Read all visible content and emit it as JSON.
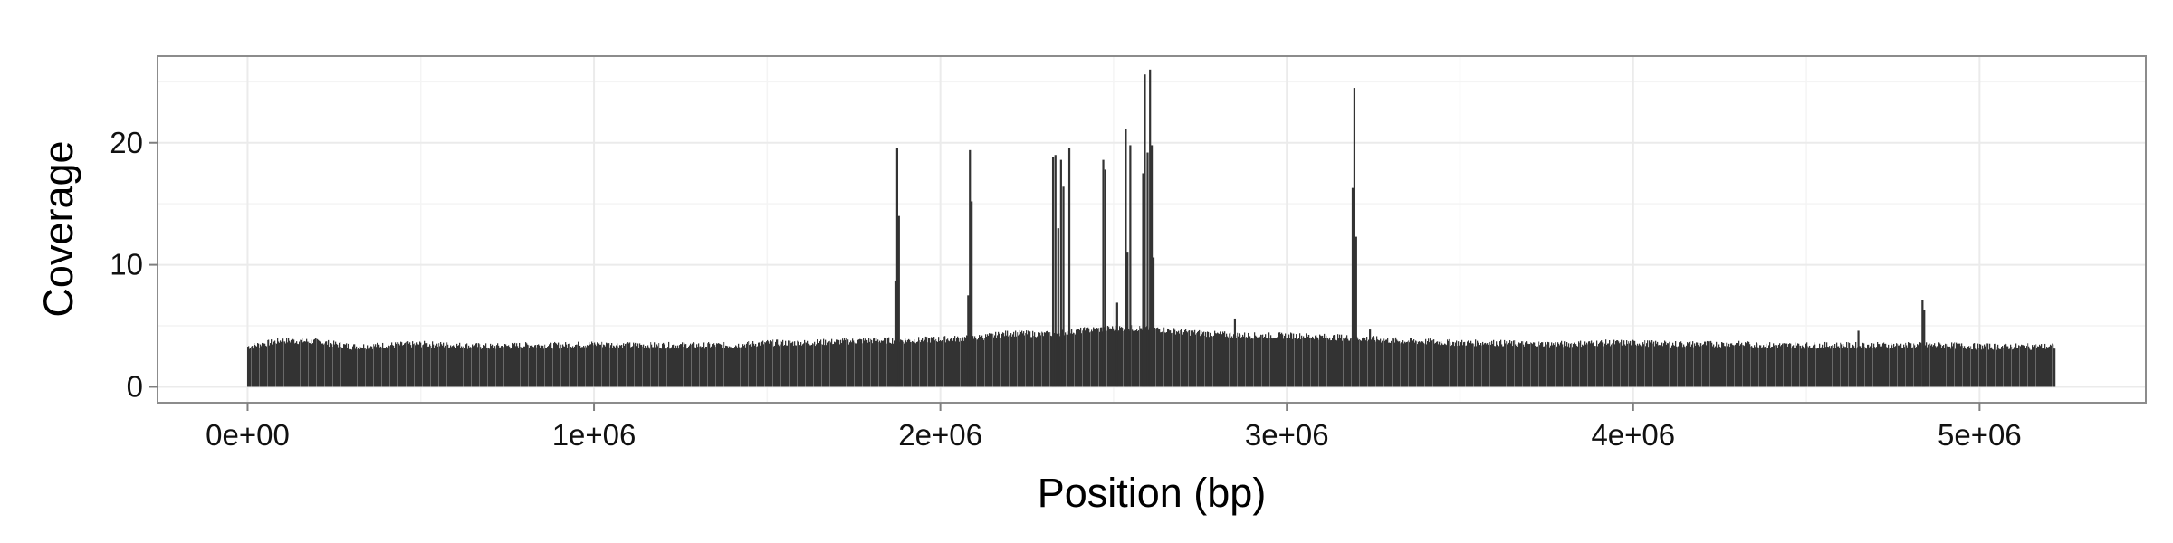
{
  "chart_data": {
    "type": "bar",
    "title": "",
    "xlabel": "Position (bp)",
    "ylabel": "Coverage",
    "xlim": [
      -260000,
      5480000
    ],
    "ylim": [
      -1.3,
      27.1
    ],
    "x_ticks": [
      0,
      1000000,
      2000000,
      3000000,
      4000000,
      5000000
    ],
    "x_tick_labels": [
      "0e+00",
      "1e+06",
      "2e+06",
      "3e+06",
      "4e+06",
      "5e+06"
    ],
    "y_ticks": [
      0,
      10,
      20
    ],
    "y_tick_labels": [
      "0",
      "10",
      "20"
    ],
    "x_range": [
      0,
      5220000
    ],
    "grid": true,
    "colors": {
      "bar": "#333333",
      "grid": "#ebebeb",
      "panel_border": "#8c8c8c",
      "background": "#ffffff"
    },
    "baseline_profile": [
      [
        0,
        3.3
      ],
      [
        100000,
        3.8
      ],
      [
        200000,
        3.7
      ],
      [
        300000,
        3.3
      ],
      [
        400000,
        3.4
      ],
      [
        500000,
        3.5
      ],
      [
        600000,
        3.4
      ],
      [
        700000,
        3.3
      ],
      [
        800000,
        3.4
      ],
      [
        900000,
        3.4
      ],
      [
        1000000,
        3.5
      ],
      [
        1100000,
        3.4
      ],
      [
        1200000,
        3.4
      ],
      [
        1300000,
        3.4
      ],
      [
        1400000,
        3.4
      ],
      [
        1500000,
        3.6
      ],
      [
        1600000,
        3.6
      ],
      [
        1700000,
        3.7
      ],
      [
        1800000,
        3.8
      ],
      [
        1900000,
        3.8
      ],
      [
        2000000,
        3.9
      ],
      [
        2100000,
        4.0
      ],
      [
        2200000,
        4.4
      ],
      [
        2300000,
        4.3
      ],
      [
        2400000,
        4.6
      ],
      [
        2500000,
        4.8
      ],
      [
        2600000,
        4.8
      ],
      [
        2700000,
        4.5
      ],
      [
        2800000,
        4.3
      ],
      [
        2900000,
        4.2
      ],
      [
        3000000,
        4.2
      ],
      [
        3100000,
        4.1
      ],
      [
        3200000,
        4.0
      ],
      [
        3300000,
        3.8
      ],
      [
        3400000,
        3.7
      ],
      [
        3500000,
        3.6
      ],
      [
        3600000,
        3.6
      ],
      [
        3700000,
        3.5
      ],
      [
        3800000,
        3.5
      ],
      [
        3900000,
        3.6
      ],
      [
        4000000,
        3.6
      ],
      [
        4100000,
        3.5
      ],
      [
        4200000,
        3.5
      ],
      [
        4300000,
        3.5
      ],
      [
        4400000,
        3.4
      ],
      [
        4500000,
        3.4
      ],
      [
        4600000,
        3.4
      ],
      [
        4700000,
        3.4
      ],
      [
        4800000,
        3.4
      ],
      [
        4900000,
        3.4
      ],
      [
        5000000,
        3.3
      ],
      [
        5100000,
        3.3
      ],
      [
        5220000,
        3.3
      ]
    ],
    "peaks": [
      {
        "x": 1870000,
        "y": 8.7
      },
      {
        "x": 1875000,
        "y": 19.6
      },
      {
        "x": 1880000,
        "y": 14.0
      },
      {
        "x": 2080000,
        "y": 7.5
      },
      {
        "x": 2085000,
        "y": 19.4
      },
      {
        "x": 2090000,
        "y": 15.2
      },
      {
        "x": 2325000,
        "y": 18.8
      },
      {
        "x": 2332000,
        "y": 19.0
      },
      {
        "x": 2340000,
        "y": 13.0
      },
      {
        "x": 2348000,
        "y": 18.6
      },
      {
        "x": 2355000,
        "y": 16.4
      },
      {
        "x": 2372000,
        "y": 19.6
      },
      {
        "x": 2470000,
        "y": 18.6
      },
      {
        "x": 2476000,
        "y": 17.8
      },
      {
        "x": 2510000,
        "y": 6.9
      },
      {
        "x": 2535000,
        "y": 21.1
      },
      {
        "x": 2540000,
        "y": 11.0
      },
      {
        "x": 2548000,
        "y": 19.8
      },
      {
        "x": 2585000,
        "y": 17.5
      },
      {
        "x": 2590000,
        "y": 25.6
      },
      {
        "x": 2598000,
        "y": 19.2
      },
      {
        "x": 2605000,
        "y": 26.0
      },
      {
        "x": 2610000,
        "y": 19.8
      },
      {
        "x": 2615000,
        "y": 10.6
      },
      {
        "x": 2850000,
        "y": 5.6
      },
      {
        "x": 3190000,
        "y": 16.3
      },
      {
        "x": 3195000,
        "y": 24.5
      },
      {
        "x": 3200000,
        "y": 12.3
      },
      {
        "x": 3240000,
        "y": 4.7
      },
      {
        "x": 4650000,
        "y": 4.6
      },
      {
        "x": 4835000,
        "y": 7.1
      },
      {
        "x": 4840000,
        "y": 6.3
      }
    ]
  }
}
